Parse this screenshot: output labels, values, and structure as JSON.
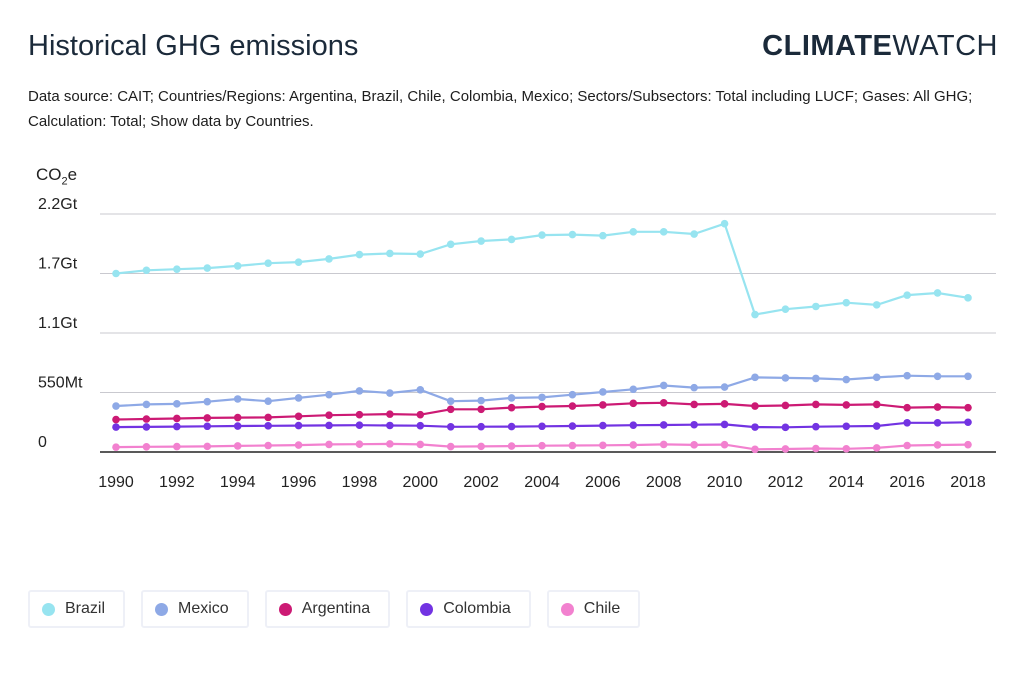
{
  "header": {
    "title": "Historical GHG emissions",
    "logo_bold": "CLIMATE",
    "logo_light": "WATCH",
    "source": "Data source: CAIT; Countries/Regions: Argentina, Brazil, Chile, Colombia, Mexico; Sectors/Subsectors: Total including LUCF; Gases: All GHG; Calculation: Total; Show data by Countries."
  },
  "chart_data": {
    "type": "line",
    "ylabel": "CO2e",
    "ylabel_main": "CO",
    "ylabel_sub": "2",
    "ylabel_tail": "e",
    "ylim": [
      0,
      2200
    ],
    "yticks": [
      {
        "value": 0,
        "label": "0"
      },
      {
        "value": 550,
        "label": "550Mt"
      },
      {
        "value": 1100,
        "label": "1.1Gt"
      },
      {
        "value": 1650,
        "label": "1.7Gt"
      },
      {
        "value": 2200,
        "label": "2.2Gt"
      }
    ],
    "xticks": [
      1990,
      1992,
      1994,
      1996,
      1998,
      2000,
      2002,
      2004,
      2006,
      2008,
      2010,
      2012,
      2014,
      2016,
      2018
    ],
    "x": [
      1990,
      1991,
      1992,
      1993,
      1994,
      1995,
      1996,
      1997,
      1998,
      1999,
      2000,
      2001,
      2002,
      2003,
      2004,
      2005,
      2006,
      2007,
      2008,
      2009,
      2010,
      2011,
      2012,
      2013,
      2014,
      2015,
      2016,
      2017,
      2018
    ],
    "grid": true,
    "legend_position": "bottom",
    "series": [
      {
        "name": "Brazil",
        "color": "#97e4f0",
        "values": [
          1650,
          1680,
          1690,
          1700,
          1720,
          1745,
          1755,
          1785,
          1825,
          1835,
          1830,
          1920,
          1950,
          1965,
          2005,
          2010,
          2000,
          2035,
          2035,
          2015,
          2110,
          1270,
          1320,
          1345,
          1380,
          1360,
          1450,
          1470,
          1425
        ]
      },
      {
        "name": "Mexico",
        "color": "#8ea9e6",
        "values": [
          425,
          440,
          445,
          465,
          490,
          470,
          500,
          530,
          565,
          545,
          575,
          470,
          475,
          500,
          505,
          530,
          555,
          580,
          615,
          595,
          600,
          690,
          685,
          680,
          670,
          690,
          705,
          700,
          700
        ]
      },
      {
        "name": "Argentina",
        "color": "#cc1a74",
        "values": [
          300,
          305,
          310,
          315,
          318,
          320,
          330,
          340,
          345,
          350,
          345,
          395,
          395,
          410,
          420,
          425,
          435,
          450,
          455,
          440,
          445,
          425,
          430,
          440,
          435,
          440,
          410,
          415,
          410
        ]
      },
      {
        "name": "Colombia",
        "color": "#7233e2",
        "values": [
          230,
          232,
          235,
          238,
          240,
          242,
          244,
          246,
          248,
          245,
          243,
          233,
          234,
          235,
          238,
          240,
          244,
          248,
          250,
          252,
          255,
          230,
          228,
          234,
          238,
          240,
          270,
          270,
          275
        ]
      },
      {
        "name": "Chile",
        "color": "#f281cf",
        "values": [
          45,
          48,
          50,
          52,
          56,
          60,
          64,
          70,
          72,
          75,
          70,
          50,
          52,
          55,
          58,
          60,
          62,
          65,
          70,
          66,
          68,
          25,
          28,
          32,
          30,
          38,
          60,
          65,
          68
        ]
      }
    ]
  }
}
